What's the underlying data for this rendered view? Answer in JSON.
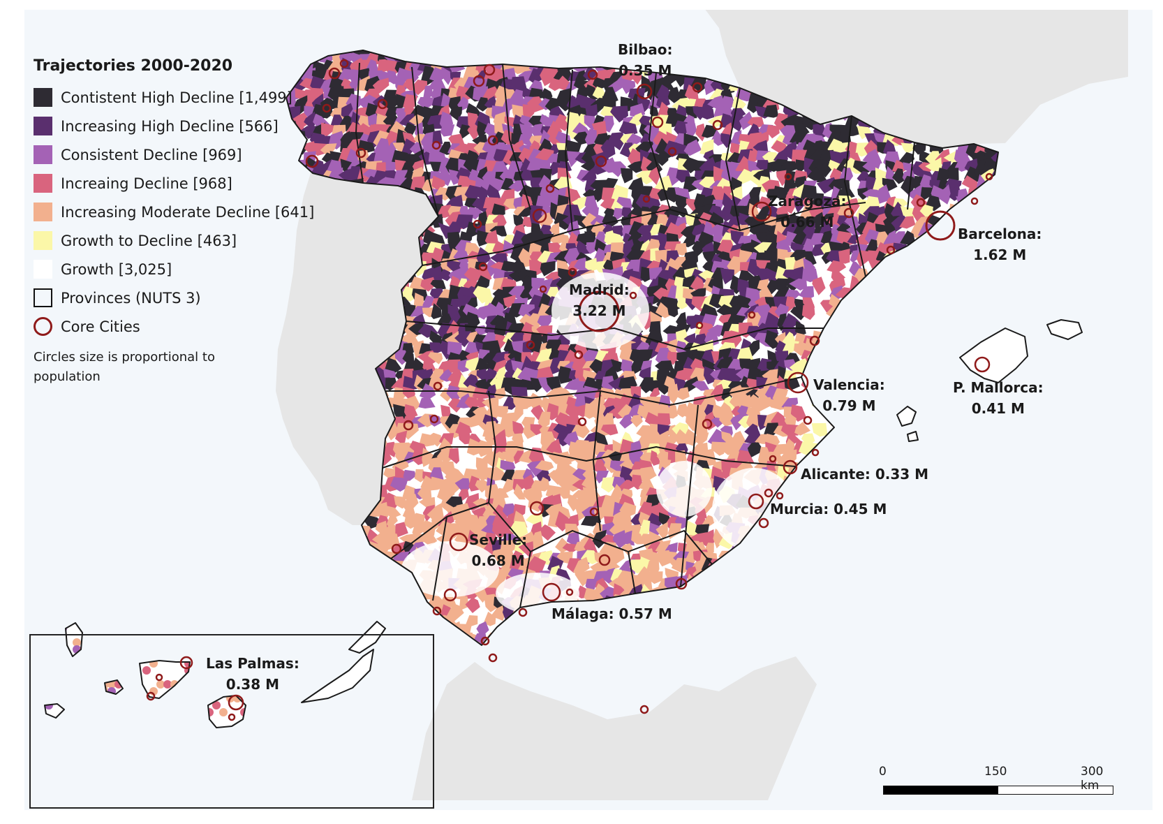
{
  "legend": {
    "title": "Trajectories 2000-2020",
    "items": [
      {
        "label": "Contistent High Decline [1,499]",
        "color": "#2e2b33",
        "type": "fill",
        "count": 1499
      },
      {
        "label": "Increasing High Decline [566]",
        "color": "#5a2f6e",
        "type": "fill",
        "count": 566
      },
      {
        "label": "Consistent Decline [969]",
        "color": "#a462b5",
        "type": "fill",
        "count": 969
      },
      {
        "label": "Increaing Decline [968]",
        "color": "#d9647e",
        "type": "fill",
        "count": 968
      },
      {
        "label": "Increasing Moderate Decline [641]",
        "color": "#f2b08e",
        "type": "fill",
        "count": 641
      },
      {
        "label": "Growth to Decline [463]",
        "color": "#fbf7a8",
        "type": "fill",
        "count": 463
      },
      {
        "label": "Growth [3,025]",
        "color": "#ffffff",
        "type": "fill",
        "count": 3025
      },
      {
        "label": "Provinces (NUTS 3)",
        "color": "#111111",
        "type": "outline"
      },
      {
        "label": "Core Cities",
        "color": "#8f1a1a",
        "type": "circle"
      }
    ],
    "note": "Circles size is proportional to population"
  },
  "cities": [
    {
      "name": "Bilbao:",
      "population": "0.35 M"
    },
    {
      "name": "Zaragoza:",
      "population": "0.66 M"
    },
    {
      "name": "Barcelona:",
      "population": "1.62 M"
    },
    {
      "name": "Madrid:",
      "population": "3.22 M"
    },
    {
      "name": "Valencia:",
      "population": "0.79 M"
    },
    {
      "name": "P. Mallorca:",
      "population": "0.41 M"
    },
    {
      "name": "Alicante:",
      "population": "0.33 M",
      "inline": "Alicante: 0.33 M"
    },
    {
      "name": "Murcia:",
      "population": "0.45 M",
      "inline": "Murcia: 0.45 M"
    },
    {
      "name": "Seville:",
      "population": "0.68 M"
    },
    {
      "name": "Málaga:",
      "population": "0.57 M",
      "inline": "Málaga: 0.57 M"
    },
    {
      "name": "Las Palmas:",
      "population": "0.38 M"
    }
  ],
  "scale": {
    "ticks": [
      "0",
      "150",
      "300 km"
    ]
  },
  "colors": {
    "sea": "#f3f7fb",
    "land_outside": "#e6e6e6",
    "circle": "#8f1a1a",
    "border": "#1a1a1a"
  }
}
